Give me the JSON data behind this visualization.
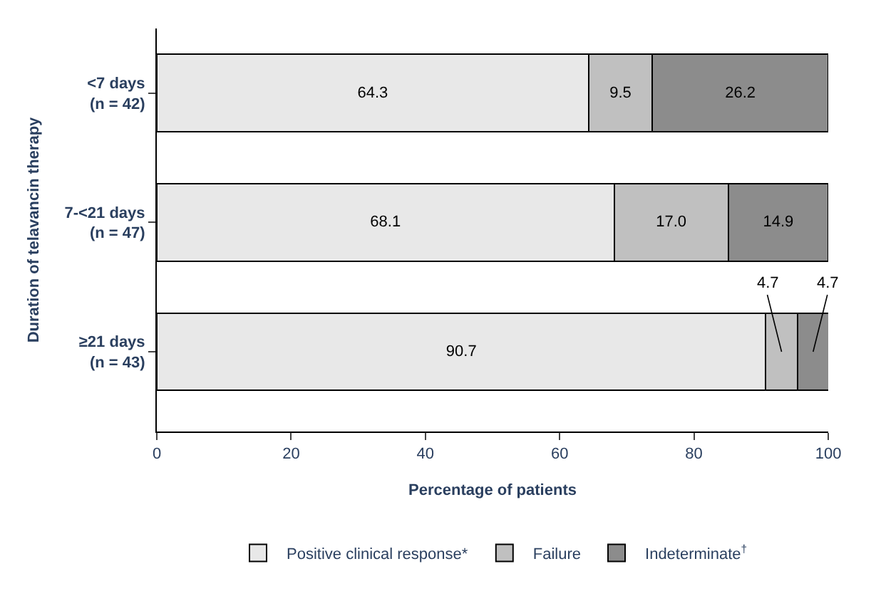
{
  "chart_data": {
    "type": "bar",
    "orientation": "horizontal",
    "stacked": true,
    "categories": [
      "<7 days\n(n = 42)",
      "7-<21 days\n(n = 47)",
      "≥21 days\n(n = 43)"
    ],
    "series": [
      {
        "name": "Positive clinical response*",
        "color": "#e8e8e8",
        "values": [
          64.3,
          68.1,
          90.7
        ],
        "value_labels": [
          "64.3",
          "68.1",
          "90.7"
        ]
      },
      {
        "name": "Failure",
        "color": "#c0c0c0",
        "values": [
          9.5,
          17.0,
          4.7
        ],
        "value_labels": [
          "9.5",
          "17.0",
          "4.7"
        ]
      },
      {
        "name": "Indeterminate$^{†}$",
        "color": "#8c8c8c",
        "values": [
          26.2,
          14.9,
          4.7
        ],
        "value_labels": [
          "26.2",
          "14.9",
          "4.7"
        ]
      }
    ],
    "xlim": [
      0,
      100
    ],
    "xticks": [
      0,
      20,
      40,
      60,
      80,
      100
    ],
    "xlabel": "Percentage of patients",
    "ylabel": "Duration of telavancin therapy",
    "legend": "bottom"
  }
}
